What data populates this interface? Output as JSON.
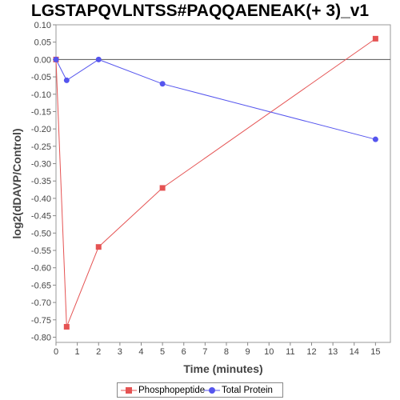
{
  "chart_data": {
    "type": "line",
    "title": "LGSTAPQVLNTSS#PAQQAENEAK(+ 3)_v1",
    "xlabel": "Time (minutes)",
    "ylabel": "log2(dDAVP/Control)",
    "xlim": [
      0,
      15.7
    ],
    "ylim": [
      -0.815,
      0.1
    ],
    "xticks": [
      0,
      1,
      2,
      3,
      4,
      5,
      6,
      7,
      8,
      9,
      10,
      11,
      12,
      13,
      14,
      15
    ],
    "yticks": [
      0.1,
      0.05,
      0.0,
      -0.05,
      -0.1,
      -0.15,
      -0.2,
      -0.25,
      -0.3,
      -0.35,
      -0.4,
      -0.45,
      -0.5,
      -0.55,
      -0.6,
      -0.65,
      -0.7,
      -0.75,
      -0.8
    ],
    "grid": false,
    "zero_line": true,
    "legend_position": "bottom",
    "series": [
      {
        "name": "Phosphopeptide",
        "color": "#e55353",
        "marker": "square",
        "x": [
          0,
          0.5,
          2,
          5,
          15
        ],
        "y": [
          0.0,
          -0.77,
          -0.54,
          -0.37,
          0.06
        ]
      },
      {
        "name": "Total Protein",
        "color": "#5555ee",
        "marker": "circle",
        "x": [
          0,
          0.5,
          2,
          5,
          15
        ],
        "y": [
          0.0,
          -0.06,
          0.0,
          -0.07,
          -0.23
        ]
      }
    ]
  }
}
